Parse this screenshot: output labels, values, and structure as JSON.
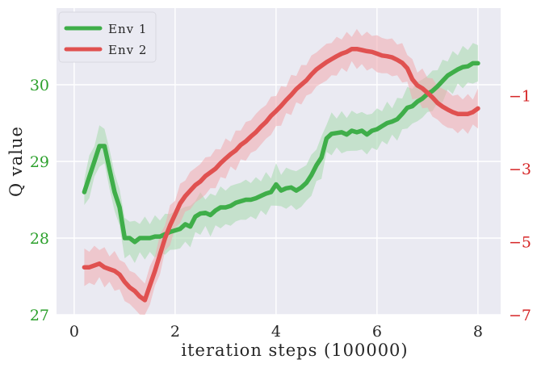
{
  "chart_data": {
    "type": "line",
    "title": "",
    "xlabel": "iteration steps (100000)",
    "ylabel_left": "Q value",
    "ylabel_right": "",
    "xlim": [
      -0.35,
      8.45
    ],
    "ylim_left": [
      27,
      31
    ],
    "ylim_right": [
      -7,
      1.4
    ],
    "x_ticks": [
      "0",
      "2",
      "4",
      "6",
      "8"
    ],
    "y_ticks_left": [
      "27",
      "28",
      "29",
      "30"
    ],
    "y_ticks_right": [
      "−7",
      "−5",
      "−3",
      "−1"
    ],
    "grid": true,
    "legend_position": "top-left",
    "colors": {
      "env1": "#3fae49",
      "env2": "#e05150",
      "env1_band": "#a6d9ad",
      "env2_band": "#f0a9ae",
      "left_tick": "#2ca02c",
      "right_tick": "#d62728",
      "background": "#eaeaf2"
    },
    "series": [
      {
        "name": "Env 1",
        "axis": "left",
        "band": 0.28,
        "x": [
          0.2,
          0.3,
          0.4,
          0.5,
          0.6,
          0.7,
          0.8,
          0.9,
          1.0,
          1.1,
          1.2,
          1.3,
          1.4,
          1.5,
          1.6,
          1.7,
          1.8,
          1.9,
          2.0,
          2.1,
          2.2,
          2.3,
          2.4,
          2.5,
          2.6,
          2.7,
          2.8,
          2.9,
          3.0,
          3.1,
          3.2,
          3.3,
          3.4,
          3.5,
          3.6,
          3.7,
          3.8,
          3.9,
          4.0,
          4.1,
          4.2,
          4.3,
          4.4,
          4.5,
          4.6,
          4.7,
          4.8,
          4.9,
          5.0,
          5.1,
          5.2,
          5.3,
          5.4,
          5.5,
          5.6,
          5.7,
          5.8,
          5.9,
          6.0,
          6.1,
          6.2,
          6.3,
          6.4,
          6.5,
          6.6,
          6.7,
          6.8,
          6.9,
          7.0,
          7.1,
          7.2,
          7.3,
          7.4,
          7.5,
          7.6,
          7.7,
          7.8,
          7.9,
          8.0
        ],
        "values": [
          28.6,
          28.8,
          29.0,
          29.2,
          29.2,
          28.9,
          28.6,
          28.4,
          28.0,
          28.0,
          27.95,
          28.0,
          28.0,
          28.0,
          28.02,
          28.02,
          28.05,
          28.08,
          28.1,
          28.12,
          28.18,
          28.15,
          28.28,
          28.32,
          28.33,
          28.3,
          28.36,
          28.4,
          28.4,
          28.42,
          28.46,
          28.48,
          28.5,
          28.5,
          28.52,
          28.55,
          28.58,
          28.6,
          28.7,
          28.62,
          28.65,
          28.66,
          28.62,
          28.66,
          28.72,
          28.82,
          28.95,
          29.05,
          29.3,
          29.36,
          29.37,
          29.38,
          29.35,
          29.4,
          29.38,
          29.4,
          29.35,
          29.4,
          29.42,
          29.46,
          29.5,
          29.52,
          29.55,
          29.62,
          29.7,
          29.72,
          29.78,
          29.82,
          29.88,
          29.92,
          29.98,
          30.05,
          30.12,
          30.16,
          30.2,
          30.23,
          30.24,
          30.28,
          30.28
        ]
      },
      {
        "name": "Env 2",
        "axis": "right",
        "band": 0.55,
        "x": [
          0.2,
          0.3,
          0.4,
          0.5,
          0.6,
          0.7,
          0.8,
          0.9,
          1.0,
          1.1,
          1.2,
          1.3,
          1.4,
          1.5,
          1.6,
          1.7,
          1.8,
          1.9,
          2.0,
          2.1,
          2.2,
          2.3,
          2.4,
          2.5,
          2.6,
          2.7,
          2.8,
          2.9,
          3.0,
          3.1,
          3.2,
          3.3,
          3.4,
          3.5,
          3.6,
          3.7,
          3.8,
          3.9,
          4.0,
          4.1,
          4.2,
          4.3,
          4.4,
          4.5,
          4.6,
          4.7,
          4.8,
          4.9,
          5.0,
          5.1,
          5.2,
          5.3,
          5.4,
          5.5,
          5.6,
          5.7,
          5.8,
          5.9,
          6.0,
          6.1,
          6.2,
          6.3,
          6.4,
          6.5,
          6.6,
          6.7,
          6.8,
          6.9,
          7.0,
          7.1,
          7.2,
          7.3,
          7.4,
          7.5,
          7.6,
          7.7,
          7.8,
          7.9,
          8.0
        ],
        "values": [
          -5.7,
          -5.7,
          -5.65,
          -5.6,
          -5.7,
          -5.75,
          -5.8,
          -5.9,
          -6.1,
          -6.25,
          -6.35,
          -6.5,
          -6.6,
          -6.2,
          -5.8,
          -5.35,
          -4.9,
          -4.55,
          -4.25,
          -3.95,
          -3.75,
          -3.6,
          -3.45,
          -3.35,
          -3.2,
          -3.1,
          -3.0,
          -2.85,
          -2.72,
          -2.6,
          -2.5,
          -2.35,
          -2.25,
          -2.12,
          -2.0,
          -1.85,
          -1.72,
          -1.55,
          -1.42,
          -1.28,
          -1.12,
          -0.98,
          -0.82,
          -0.7,
          -0.58,
          -0.42,
          -0.28,
          -0.18,
          -0.08,
          0.0,
          0.08,
          0.15,
          0.2,
          0.28,
          0.28,
          0.25,
          0.22,
          0.2,
          0.15,
          0.1,
          0.08,
          0.05,
          -0.02,
          -0.1,
          -0.25,
          -0.55,
          -0.72,
          -0.8,
          -0.92,
          -1.05,
          -1.2,
          -1.3,
          -1.38,
          -1.45,
          -1.5,
          -1.5,
          -1.5,
          -1.45,
          -1.35
        ]
      }
    ]
  }
}
